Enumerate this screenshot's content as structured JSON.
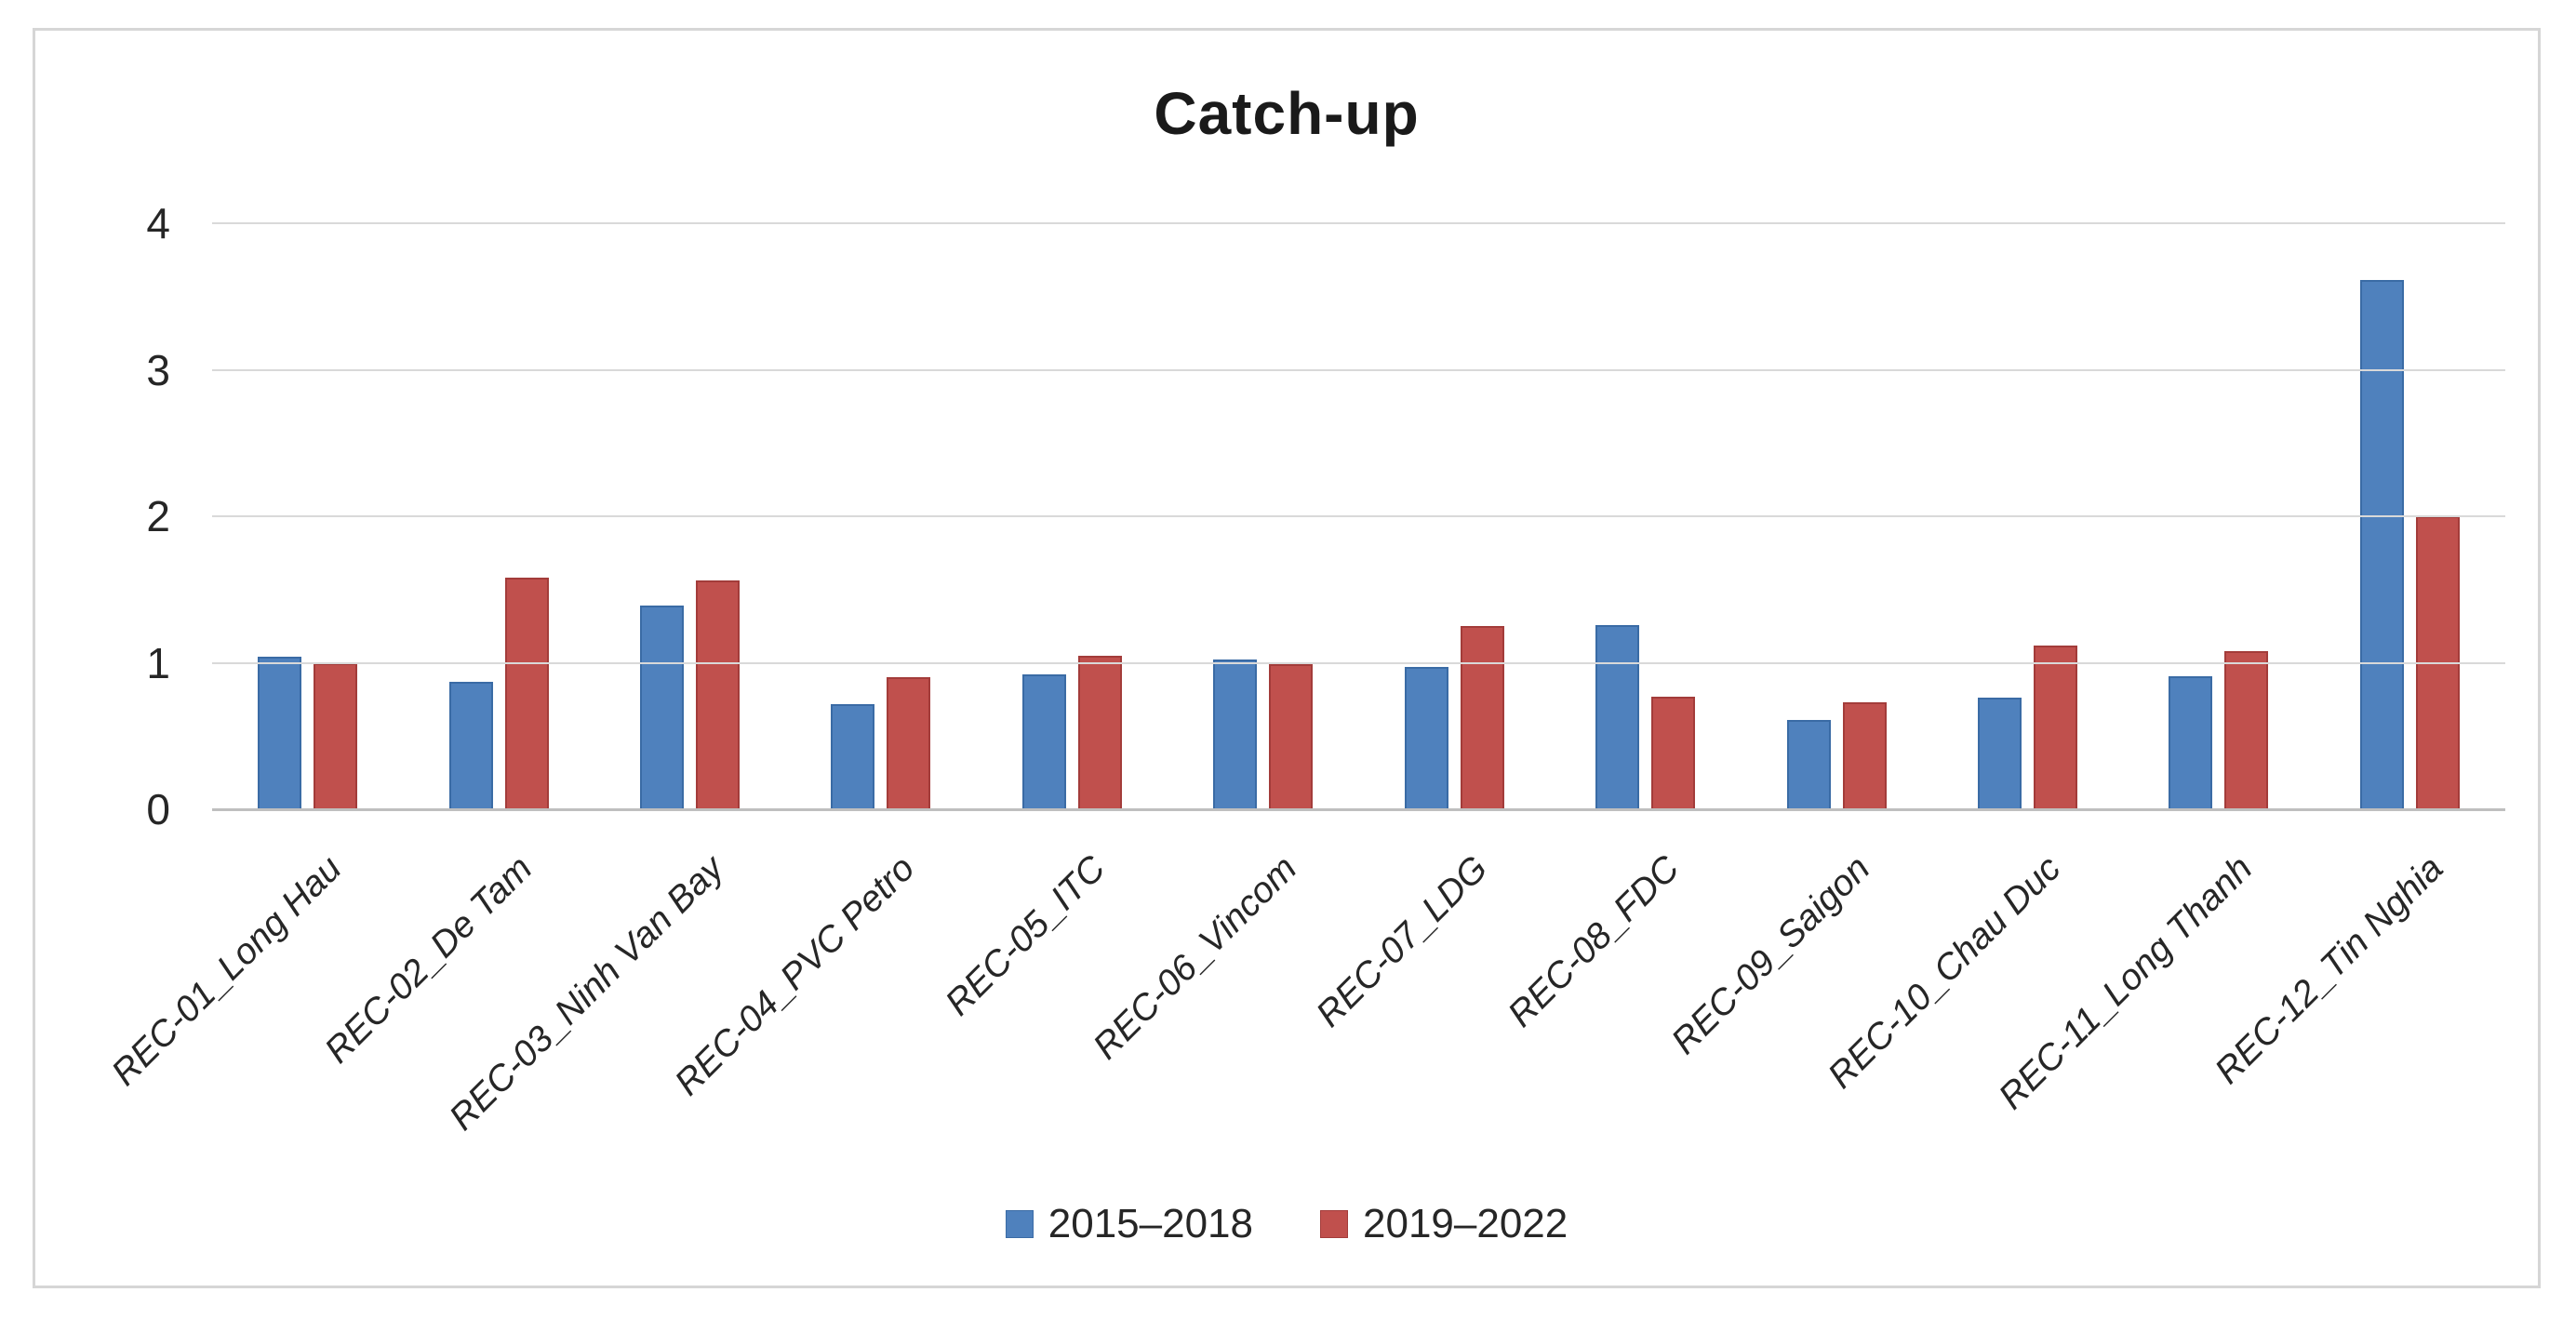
{
  "title": "Catch-up",
  "chart_data": {
    "type": "bar",
    "title": "Catch-up",
    "categories": [
      "REC-01_Long Hau",
      "REC-02_De Tam",
      "REC-03_Ninh Van Bay",
      "REC-04_PVC Petro",
      "REC-05_ITC",
      "REC-06_Vincom",
      "REC-07_LDG",
      "REC-08_FDC",
      "REC-09_Saigon",
      "REC-10_Chau Duc",
      "REC-11_Long Thanh",
      "REC-12_Tin Nghia"
    ],
    "series": [
      {
        "name": "2015–2018",
        "color": "#4f81bd",
        "border_color": "#3a6ba5",
        "values": [
          1.04,
          0.87,
          1.39,
          0.72,
          0.92,
          1.02,
          0.97,
          1.26,
          0.61,
          0.76,
          0.91,
          3.61
        ]
      },
      {
        "name": "2019–2022",
        "color": "#c0504d",
        "border_color": "#a33c3a",
        "values": [
          1.0,
          1.58,
          1.56,
          0.9,
          1.05,
          0.99,
          1.25,
          0.77,
          0.73,
          1.12,
          1.08,
          2.0
        ]
      }
    ],
    "xlabel": "",
    "ylabel": "",
    "ylim": [
      0,
      4
    ],
    "yticks": [
      0,
      1,
      2,
      3,
      4
    ],
    "grid": true,
    "legend_position": "bottom",
    "gridline_color": "#d9d9d9",
    "axis_line_color": "#bfbfbf"
  }
}
